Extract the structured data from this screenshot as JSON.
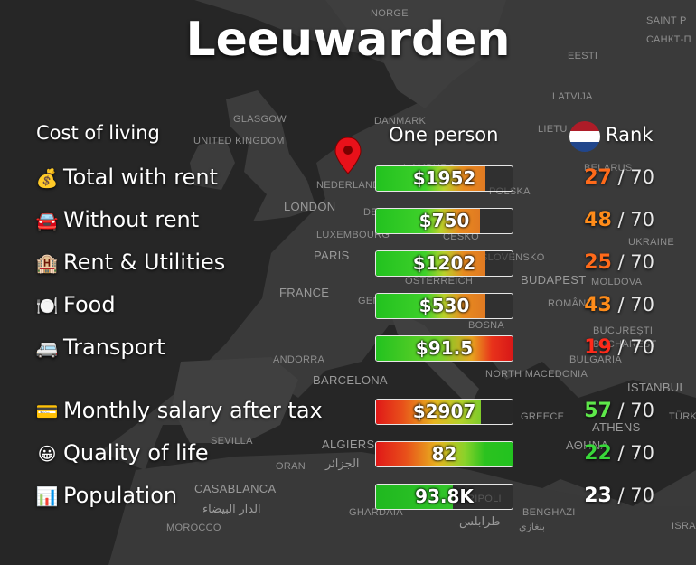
{
  "title": "Leeuwarden",
  "headers": {
    "category": "Cost of living",
    "column": "One person",
    "rank": "Rank"
  },
  "flag_colors": [
    "#ae1c28",
    "#ffffff",
    "#21468b"
  ],
  "marker_color": "#e8111a",
  "map_labels": [
    "NORGE",
    "SAINT P",
    "САНКТ-П",
    "EESTI",
    "LATVIJA",
    "GLASGOW",
    "DANMARK",
    "LIETU",
    "UNITED KINGDOM",
    "BELARUS",
    "HAMBURG",
    "NEDERLAND",
    "POLSKA",
    "LONDON",
    "DEUTSCHL",
    "LUXEMBOURG",
    "ČESKO",
    "UKRAINE",
    "PARIS",
    "SLOVENSKO",
    "ÖSTERREICH",
    "BUDAPEST",
    "MOLDOVA",
    "FRANCE",
    "GENEVA",
    "ROMÂNIA",
    "BOSNA",
    "BUCUREȘTI",
    "BUCHAREST",
    "ANDORRA",
    "BULGARIA",
    "BARCELONA",
    "NORTH MACEDONIA",
    "ISTANBUL",
    "GREECE",
    "TÜRK",
    "ATHENS",
    "SEVILLA",
    "ΑΘΗΝΑ",
    "ALGIERS",
    "ORAN",
    "الجزائر",
    "CASABLANCA",
    "الدار البيضاء",
    "GHARDAIA",
    "TRIPOLI",
    "طرابلس",
    "BENGHAZI",
    "بنغازي",
    "MOROCCO",
    "ISRA"
  ],
  "rows": [
    {
      "emoji": "💰",
      "label": "Total with rent",
      "value": "$1952",
      "rank": "27",
      "total": "/ 70",
      "rank_color": "#ff6a1a",
      "bar": "warm",
      "fill_pct": 80
    },
    {
      "emoji": "🚘",
      "label": "Without rent",
      "value": "$750",
      "rank": "48",
      "total": "/ 70",
      "rank_color": "#ff8c1a",
      "bar": "warm",
      "fill_pct": 76
    },
    {
      "emoji": "🏨",
      "label": "Rent & Utilities",
      "value": "$1202",
      "rank": "25",
      "total": "/ 70",
      "rank_color": "#ff6a1a",
      "bar": "warm",
      "fill_pct": 80
    },
    {
      "emoji": "🍽️",
      "label": "Food",
      "value": "$530",
      "rank": "43",
      "total": "/ 70",
      "rank_color": "#ff8c1a",
      "bar": "warm",
      "fill_pct": 80
    },
    {
      "emoji": "🚐",
      "label": "Transport",
      "value": "$91.5",
      "rank": "19",
      "total": "/ 70",
      "rank_color": "#ff2a1a",
      "bar": "hot",
      "fill_pct": 100
    },
    {
      "emoji": "💳",
      "label": "Monthly salary after tax",
      "value": "$2907",
      "rank": "57",
      "total": "/ 70",
      "rank_color": "#5ee84a",
      "bar": "salary",
      "fill_pct": 77
    },
    {
      "emoji": "😀",
      "label": "Quality of life",
      "value": "82",
      "rank": "22",
      "total": "/ 70",
      "rank_color": "#39d73a",
      "bar": "quality",
      "fill_pct": 100
    },
    {
      "emoji": "📊",
      "label": "Population",
      "value": "93.8K",
      "rank": "23",
      "total": "/ 70",
      "rank_color": "#ffffff",
      "bar": "pop",
      "fill_pct": 56
    }
  ]
}
